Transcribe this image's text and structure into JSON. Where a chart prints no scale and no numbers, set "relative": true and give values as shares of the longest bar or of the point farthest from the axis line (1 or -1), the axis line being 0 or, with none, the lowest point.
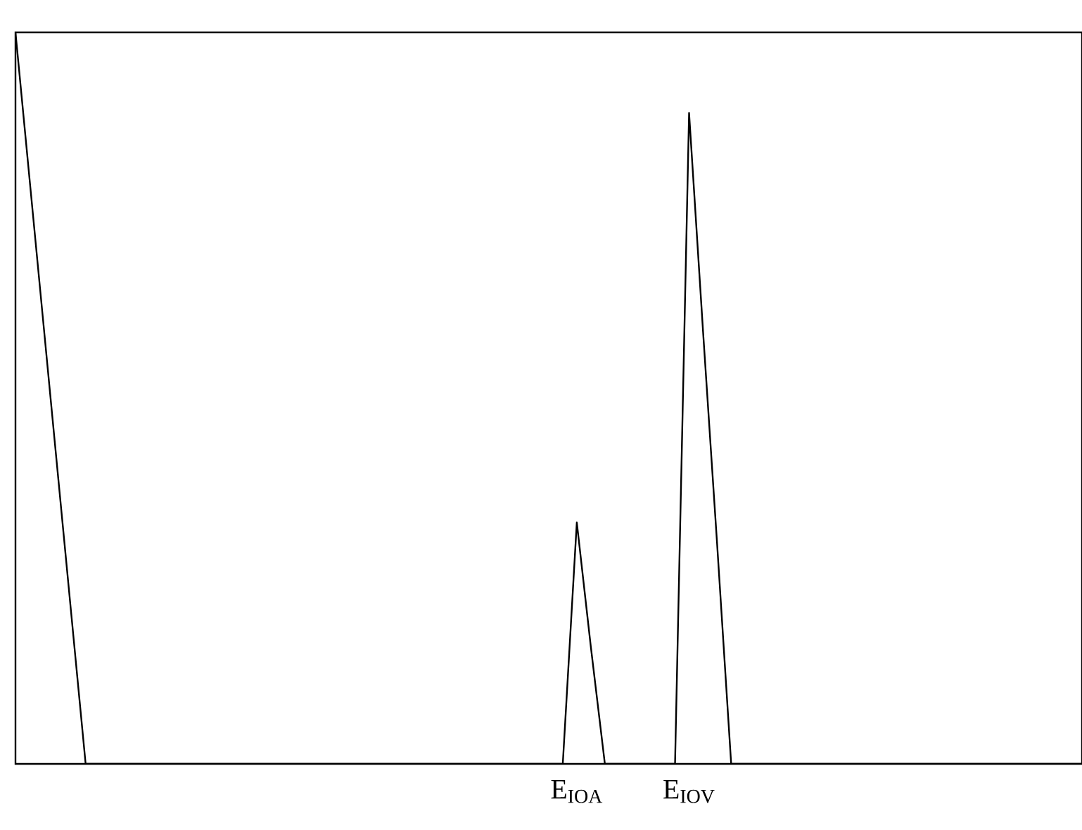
{
  "chart_data": {
    "type": "line",
    "relative": true,
    "categories": [
      null,
      null,
      null,
      null,
      null,
      null,
      null,
      null,
      null,
      null,
      null,
      null,
      null,
      null,
      null,
      null,
      null,
      null,
      null,
      null,
      null,
      null,
      null,
      null,
      null,
      null,
      null,
      null,
      null,
      null,
      null,
      null,
      null,
      null,
      null,
      null,
      null,
      null,
      null,
      null,
      "E$_{IOA}$",
      null,
      null,
      null,
      null,
      null,
      null,
      null,
      "E$_{IOV}$",
      null,
      null,
      null,
      null,
      null,
      null,
      null,
      null,
      null,
      null,
      null,
      null,
      null,
      null,
      null,
      null,
      null,
      null,
      null,
      null,
      null,
      null,
      null,
      null,
      null,
      null,
      null,
      null
    ],
    "series": [
      {
        "color": "#000000",
        "values": [
          1,
          0.8,
          0.6,
          0.4,
          0.2,
          0,
          0,
          0,
          0,
          0,
          0,
          0,
          0,
          0,
          0,
          0,
          0,
          0,
          0,
          0,
          0,
          0,
          0,
          0,
          0,
          0,
          0,
          0,
          0,
          0,
          0,
          0,
          0,
          0,
          0,
          0,
          0,
          0,
          0,
          0,
          0.33,
          0.16,
          0,
          0,
          0,
          0,
          0,
          0,
          0.89,
          0.59,
          0.3,
          0,
          0,
          0,
          0,
          0,
          0,
          0,
          0,
          0,
          0,
          0,
          0,
          0,
          0,
          0,
          0,
          0,
          0,
          0,
          0,
          0,
          0,
          0,
          0,
          0,
          0
        ]
      }
    ],
    "tick_labels": "x"
  }
}
